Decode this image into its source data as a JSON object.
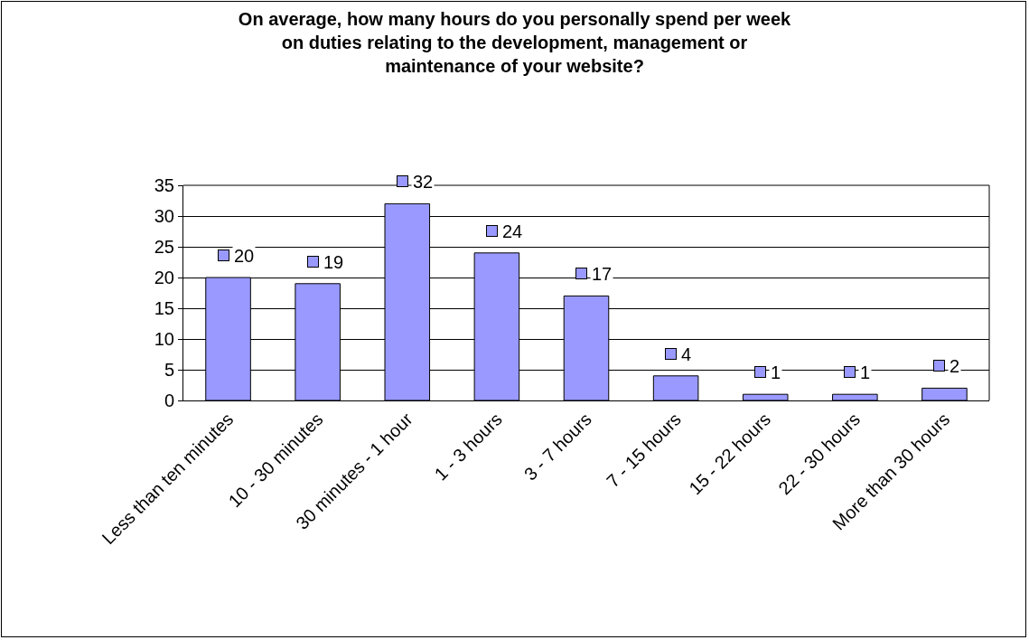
{
  "chart_data": {
    "type": "bar",
    "title": "On average, how many hours do you personally spend per week\non duties relating to the development, management or\nmaintenance of your website?",
    "categories": [
      "Less than ten minutes",
      "10 - 30 minutes",
      "30 minutes - 1 hour",
      "1 - 3 hours",
      "3 - 7 hours",
      "7 - 15 hours",
      "15 - 22 hours",
      "22 - 30 hours",
      "More than 30 hours"
    ],
    "values": [
      20,
      19,
      32,
      24,
      17,
      4,
      1,
      1,
      2
    ],
    "color": "#9999ff",
    "ylim": [
      0,
      35
    ],
    "yticks": [
      0,
      5,
      10,
      15,
      20,
      25,
      30,
      35
    ],
    "grid": "y",
    "data_labels": true
  }
}
